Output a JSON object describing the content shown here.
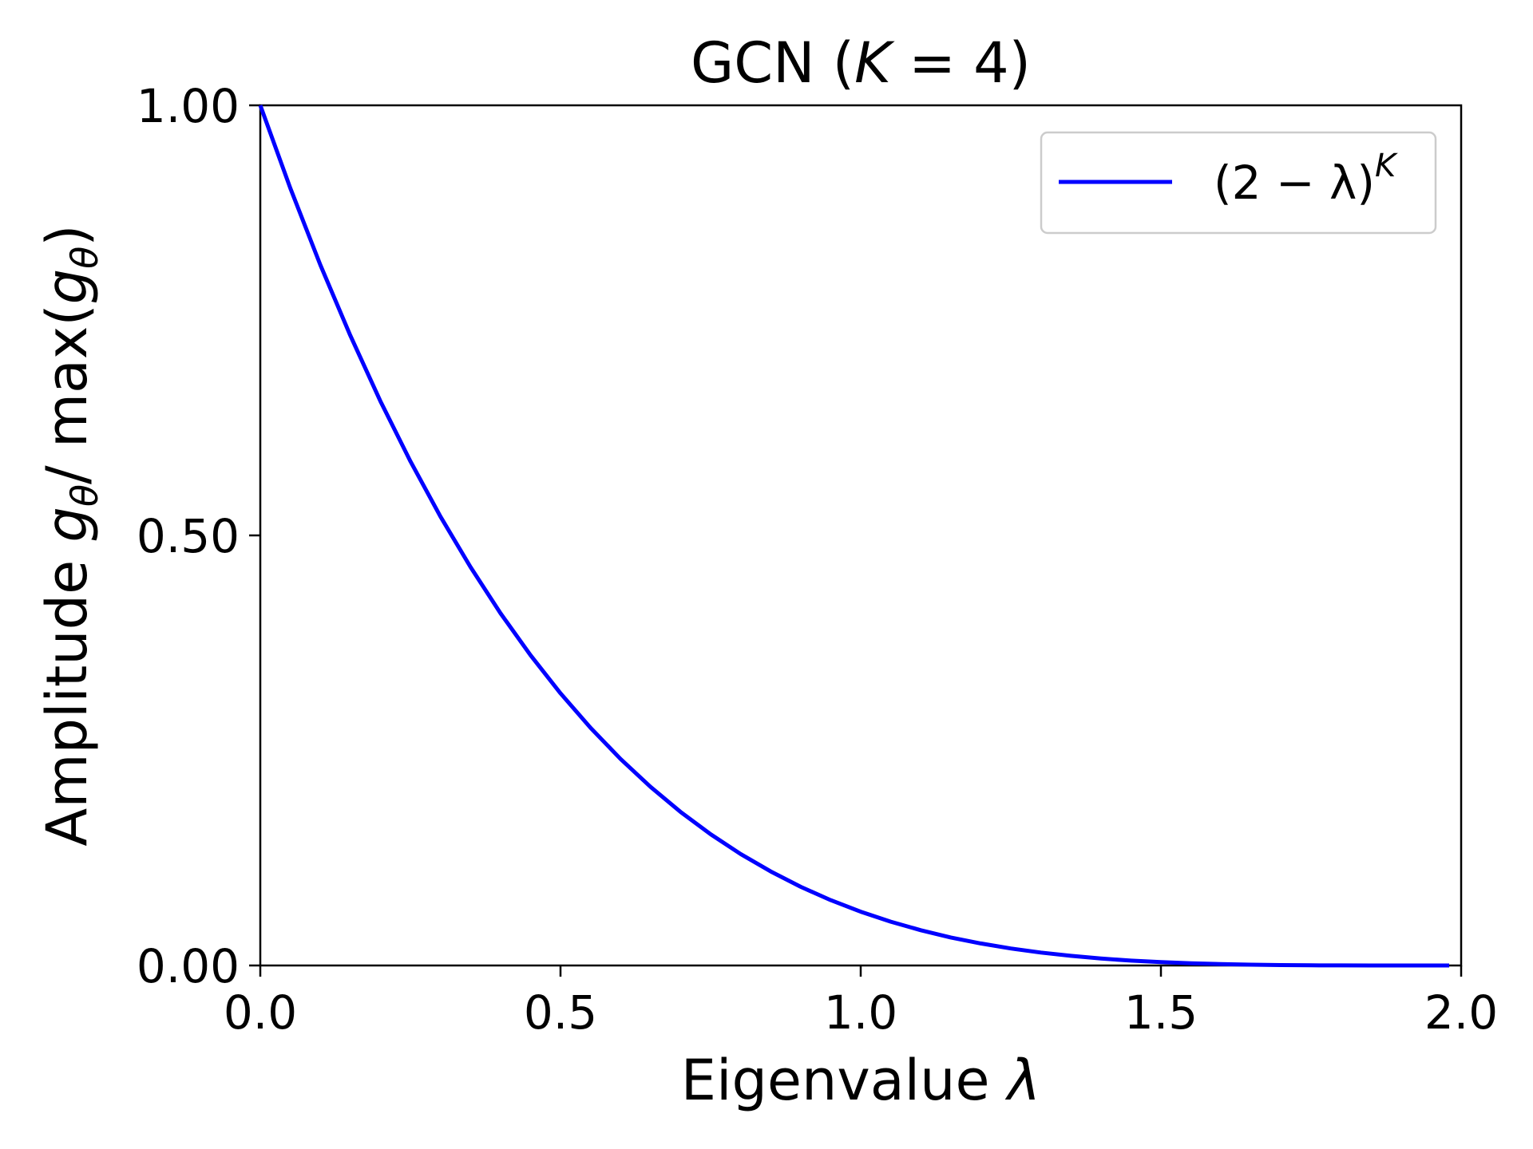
{
  "chart_data": {
    "type": "line",
    "title": "GCN (K = 4)",
    "title_parts": {
      "prefix": "GCN (",
      "symbol": "K",
      "suffix": " = 4)"
    },
    "xlabel": "Eigenvalue λ",
    "xlabel_parts": {
      "text": "Eigenvalue ",
      "symbol": "λ"
    },
    "ylabel": "Amplitude gθ/ max(gθ)",
    "ylabel_parts": {
      "a": "Amplitude ",
      "g1": "g",
      "s1": "θ",
      "b": "/ max(",
      "g2": "g",
      "s2": "θ",
      "c": ")"
    },
    "xlim": [
      0,
      2
    ],
    "ylim": [
      0,
      1
    ],
    "x_ticks": [
      0.0,
      0.5,
      1.0,
      1.5,
      2.0
    ],
    "x_tick_labels": [
      "0.0",
      "0.5",
      "1.0",
      "1.5",
      "2.0"
    ],
    "y_ticks": [
      0.0,
      0.5,
      1.0
    ],
    "y_tick_labels": [
      "0.00",
      "0.50",
      "1.00"
    ],
    "grid": false,
    "legend_position": "top-right",
    "series": [
      {
        "name": "(2 − λ)^K",
        "name_parts": {
          "base": "(2 − λ)",
          "sup": "K"
        },
        "color": "#0000ff",
        "x": [
          0.0,
          0.05,
          0.1,
          0.15,
          0.2,
          0.25,
          0.3,
          0.35,
          0.4,
          0.45,
          0.5,
          0.55,
          0.6,
          0.65,
          0.7,
          0.75,
          0.8,
          0.85,
          0.9,
          0.95,
          1.0,
          1.05,
          1.1,
          1.15,
          1.2,
          1.25,
          1.3,
          1.35,
          1.4,
          1.45,
          1.5,
          1.55,
          1.6,
          1.65,
          1.7,
          1.75,
          1.8,
          1.85,
          1.9,
          1.95,
          1.98
        ],
        "y": [
          1.0,
          0.9037,
          0.8145,
          0.7323,
          0.6561,
          0.5862,
          0.522,
          0.4634,
          0.4096,
          0.3608,
          0.3164,
          0.2763,
          0.2401,
          0.2076,
          0.1785,
          0.1526,
          0.1296,
          0.1094,
          0.0915,
          0.076,
          0.0625,
          0.0509,
          0.041,
          0.0326,
          0.0256,
          0.0198,
          0.015,
          0.0112,
          0.0081,
          0.0057,
          0.0039,
          0.0026,
          0.0016,
          0.0009,
          0.0005,
          0.0002,
          0.0001,
          0.0,
          0.0,
          0.0,
          0.0
        ]
      }
    ]
  }
}
